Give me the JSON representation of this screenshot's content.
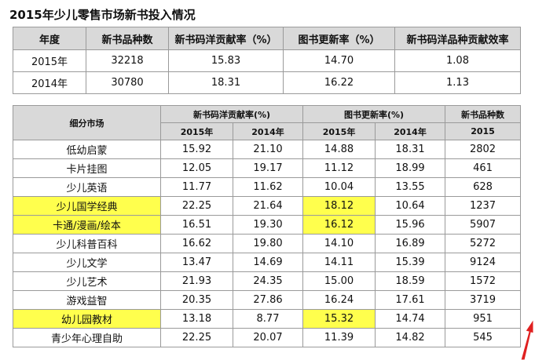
{
  "title": "2015年少儿零售市场新书投入情况",
  "summary": {
    "headers": [
      "年度",
      "新书品种数",
      "新书码洋贡献率（%）",
      "图书更新率（%）",
      "新书码洋品种贡献效率"
    ],
    "rows": [
      [
        "2015年",
        "32218",
        "15.83",
        "14.70",
        "1.08"
      ],
      [
        "2014年",
        "30780",
        "18.31",
        "16.22",
        "1.13"
      ]
    ]
  },
  "detail": {
    "header": {
      "market": "细分市场",
      "group1": "新书码洋贡献率(%)",
      "group2": "图书更新率(%)",
      "group3": "新书品种数",
      "y2015": "2015年",
      "y2014": "2014年",
      "y2015b": "2015年",
      "y2014b": "2014年",
      "y2015c": "2015"
    },
    "rows": [
      {
        "name": "低幼启蒙",
        "a15": "15.92",
        "a14": "21.10",
        "b15": "14.88",
        "b14": "18.31",
        "c15": "2802"
      },
      {
        "name": "卡片挂图",
        "a15": "12.05",
        "a14": "19.17",
        "b15": "11.12",
        "b14": "18.99",
        "c15": "461"
      },
      {
        "name": "少儿英语",
        "a15": "11.77",
        "a14": "11.62",
        "b15": "10.04",
        "b14": "13.55",
        "c15": "628"
      },
      {
        "name": "少儿国学经典",
        "a15": "22.25",
        "a14": "21.64",
        "b15": "18.12",
        "b14": "10.64",
        "c15": "1237"
      },
      {
        "name": "卡通/漫画/绘本",
        "a15": "16.51",
        "a14": "19.30",
        "b15": "16.12",
        "b14": "15.96",
        "c15": "5907"
      },
      {
        "name": "少儿科普百科",
        "a15": "16.62",
        "a14": "19.80",
        "b15": "14.10",
        "b14": "16.89",
        "c15": "5272"
      },
      {
        "name": "少儿文学",
        "a15": "13.47",
        "a14": "14.69",
        "b15": "14.11",
        "b14": "15.39",
        "c15": "9124"
      },
      {
        "name": "少儿艺术",
        "a15": "21.93",
        "a14": "24.35",
        "b15": "15.00",
        "b14": "18.59",
        "c15": "1572"
      },
      {
        "name": "游戏益智",
        "a15": "20.35",
        "a14": "27.86",
        "b15": "16.24",
        "b14": "17.61",
        "c15": "3719"
      },
      {
        "name": "幼儿园教材",
        "a15": "13.18",
        "a14": "8.77",
        "b15": "15.32",
        "b14": "14.74",
        "c15": "951"
      },
      {
        "name": "青少年心理自助",
        "a15": "22.25",
        "a14": "20.07",
        "b15": "11.39",
        "b14": "14.82",
        "c15": "545"
      }
    ]
  },
  "highlight_color": "#ffff4d",
  "header_color": "#d9d9d9",
  "arrow_color": "#e02020"
}
